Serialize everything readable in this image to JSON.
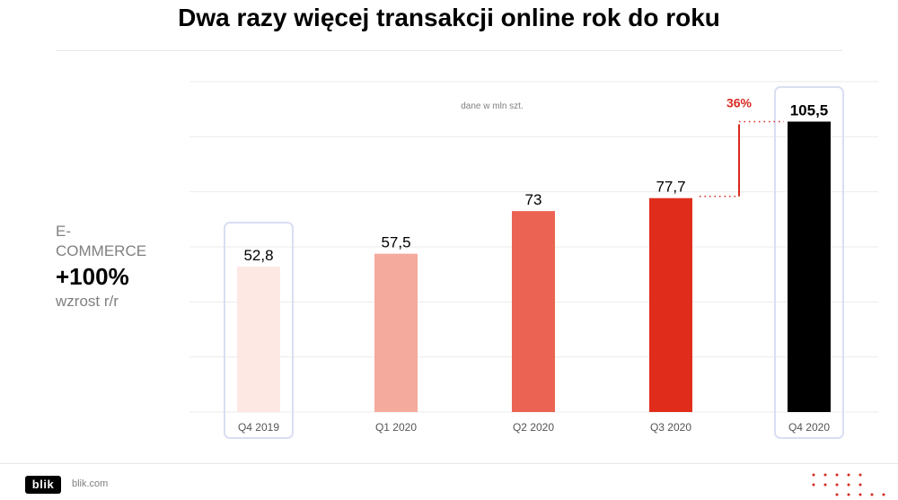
{
  "title": "Dwa razy więcej transakcji online rok do roku",
  "side_panel": {
    "label": "E-\nCOMMERCE",
    "value": "+100%",
    "caption": "wzrost r/r"
  },
  "footer": {
    "logo": "blik",
    "url": "blik.com"
  },
  "colors": {
    "accent": "#d82a20",
    "highlight_border": "#d9def2",
    "muted_text": "#808080"
  },
  "chart_data": {
    "type": "bar",
    "note": "dane w mln szt.",
    "categories": [
      "Q4 2019",
      "Q1 2020",
      "Q2 2020",
      "Q3 2020",
      "Q4 2020"
    ],
    "values": [
      52.8,
      57.5,
      73,
      77.7,
      105.5
    ],
    "value_labels": [
      "52,8",
      "57,5",
      "73",
      "77,7",
      "105,5"
    ],
    "bar_colors": [
      "#fde8e4",
      "#f4aa9d",
      "#eb6352",
      "#e02d1b",
      "#000000"
    ],
    "highlighted_categories": [
      "Q4 2019",
      "Q4 2020"
    ],
    "growth_annotation": {
      "label": "36%",
      "from_category": "Q3 2020",
      "to_category": "Q4 2020"
    },
    "ylim": [
      0,
      120
    ],
    "grid": true,
    "legend": "none"
  }
}
